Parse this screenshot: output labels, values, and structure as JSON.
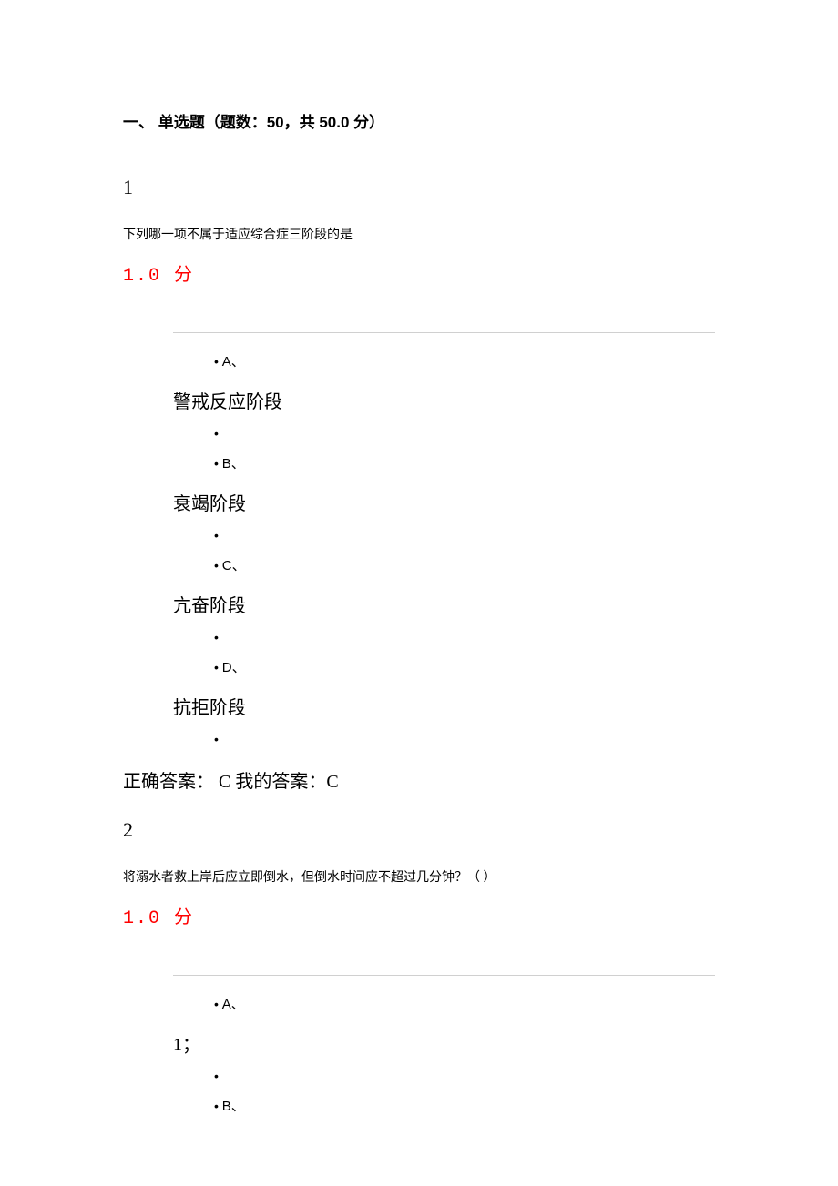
{
  "section_header": "一、 单选题（题数：50，共 50.0 分）",
  "questions": [
    {
      "number": "1",
      "text": "下列哪一项不属于适应综合症三阶段的是",
      "score": "1.0  分",
      "options": [
        {
          "letter": "A、",
          "text": "警戒反应阶段"
        },
        {
          "letter": "B、",
          "text": "衰竭阶段"
        },
        {
          "letter": "C、",
          "text": "亢奋阶段"
        },
        {
          "letter": "D、",
          "text": "抗拒阶段"
        }
      ],
      "answer_label_correct": "正确答案：",
      "answer_correct": "C",
      "answer_label_mine": "我的答案：",
      "answer_mine": "C"
    },
    {
      "number": "2",
      "text": "将溺水者救上岸后应立即倒水，但倒水时间应不超过几分钟？（ ）",
      "score": "1.0  分",
      "options_partial": [
        {
          "letter": "A、",
          "text": "1；"
        },
        {
          "letter": "B、"
        }
      ]
    }
  ],
  "colors": {
    "text": "#000000",
    "score": "#ff0000",
    "divider": "#d0d0d0",
    "background": "#ffffff"
  }
}
